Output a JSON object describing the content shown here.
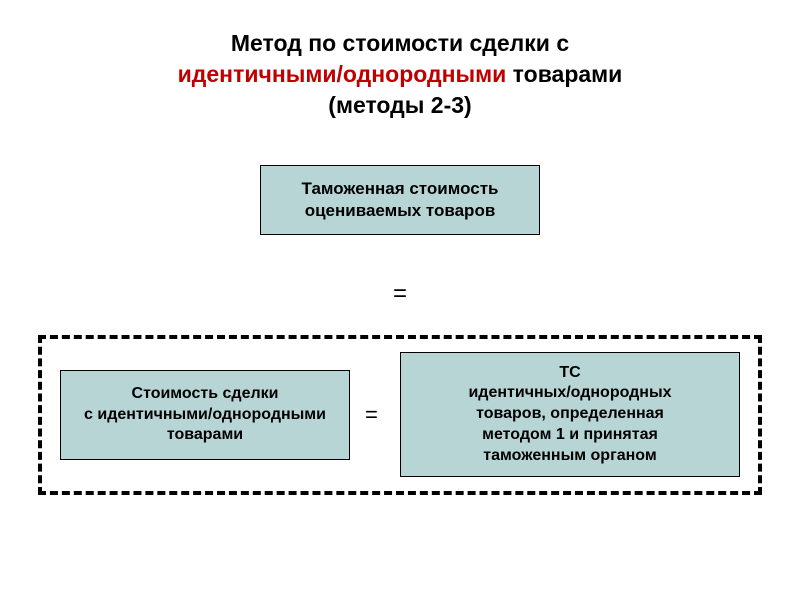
{
  "title": {
    "line1": "Метод по стоимости сделки с",
    "line2_highlight": "идентичными/однородными",
    "line2_rest": " товарами",
    "line3": "(методы 2-3)"
  },
  "top_box": {
    "line1": "Таможенная стоимость",
    "line2": "оцениваемых товаров"
  },
  "equals_center": "=",
  "left_box": {
    "line1": "Стоимость сделки",
    "line2": "с идентичными/однородными",
    "line3": "товарами"
  },
  "equals_middle": "=",
  "right_box": {
    "line1": "ТС",
    "line2": "идентичных/однородных",
    "line3": "товаров, определенная",
    "line4": "методом 1 и принятая",
    "line5": "таможенным органом"
  },
  "colors": {
    "box_fill": "#b8d5d5",
    "box_border": "#000000",
    "title_text": "#000000",
    "highlight_text": "#c00000",
    "dashed_border": "#000000",
    "background": "#ffffff"
  },
  "styling": {
    "title_fontsize": 23,
    "box_fontsize": 17,
    "small_box_fontsize": 16,
    "equals_fontsize": 24,
    "dashed_border_width": 4
  },
  "diagram_type": "flowchart"
}
